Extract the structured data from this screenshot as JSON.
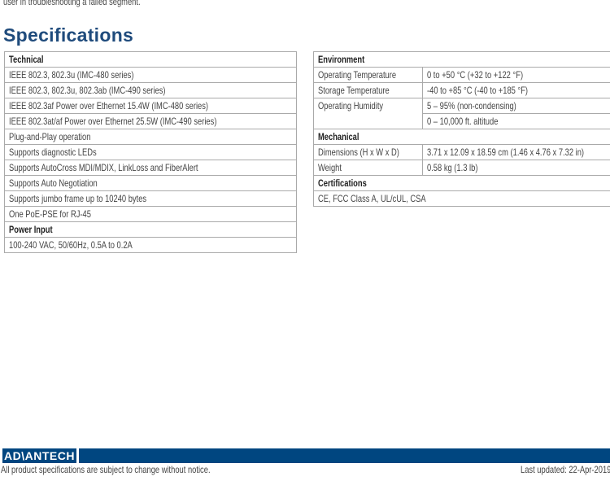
{
  "intro_text": "user in troubleshooting a failed segment.",
  "title": "Specifications",
  "left_table": {
    "technical_header": "Technical",
    "technical": [
      "IEEE 802.3, 802.3u (IMC-480 series)",
      "IEEE 802.3, 802.3u, 802.3ab (IMC-490 series)",
      "IEEE 802.3af Power over Ethernet 15.4W (IMC-480 series)",
      "IEEE 802.3at/af Power over Ethernet 25.5W (IMC-490 series)",
      "Plug-and-Play operation",
      "Supports diagnostic LEDs",
      "Supports AutoCross MDI/MDIX, LinkLoss and FiberAlert",
      "Supports Auto Negotiation",
      "Supports jumbo frame up to 10240 bytes",
      "One PoE-PSE for RJ-45"
    ],
    "power_header": "Power Input",
    "power": [
      "100-240 VAC, 50/60Hz, 0.5A to 0.2A"
    ]
  },
  "right_table": {
    "environment_header": "Environment",
    "op_temp_label": "Operating Temperature",
    "op_temp_value": "0 to +50 °C (+32 to +122 °F)",
    "st_temp_label": "Storage Temperature",
    "st_temp_value": "-40 to +85 °C (-40 to +185 °F)",
    "humidity_label": "Operating Humidity",
    "humidity_value": "5 – 95% (non-condensing)",
    "altitude_value": "0 – 10,000 ft. altitude",
    "mechanical_header": "Mechanical",
    "dimensions_label": "Dimensions (H x W x D)",
    "dimensions_value": "3.71 x 12.09 x 18.59 cm (1.46 x 4.76 x 7.32 in)",
    "weight_label": "Weight",
    "weight_value": "0.58 kg (1.3 lb)",
    "certifications_header": "Certifications",
    "certifications_value": "CE, FCC Class A, UL/cUL, CSA"
  },
  "footer": {
    "logo": "AD\\ANTECH",
    "notice": "All product specifications are subject to change without notice.",
    "updated": "Last updated: 22-Apr-2019",
    "brand_color": "#004680"
  }
}
